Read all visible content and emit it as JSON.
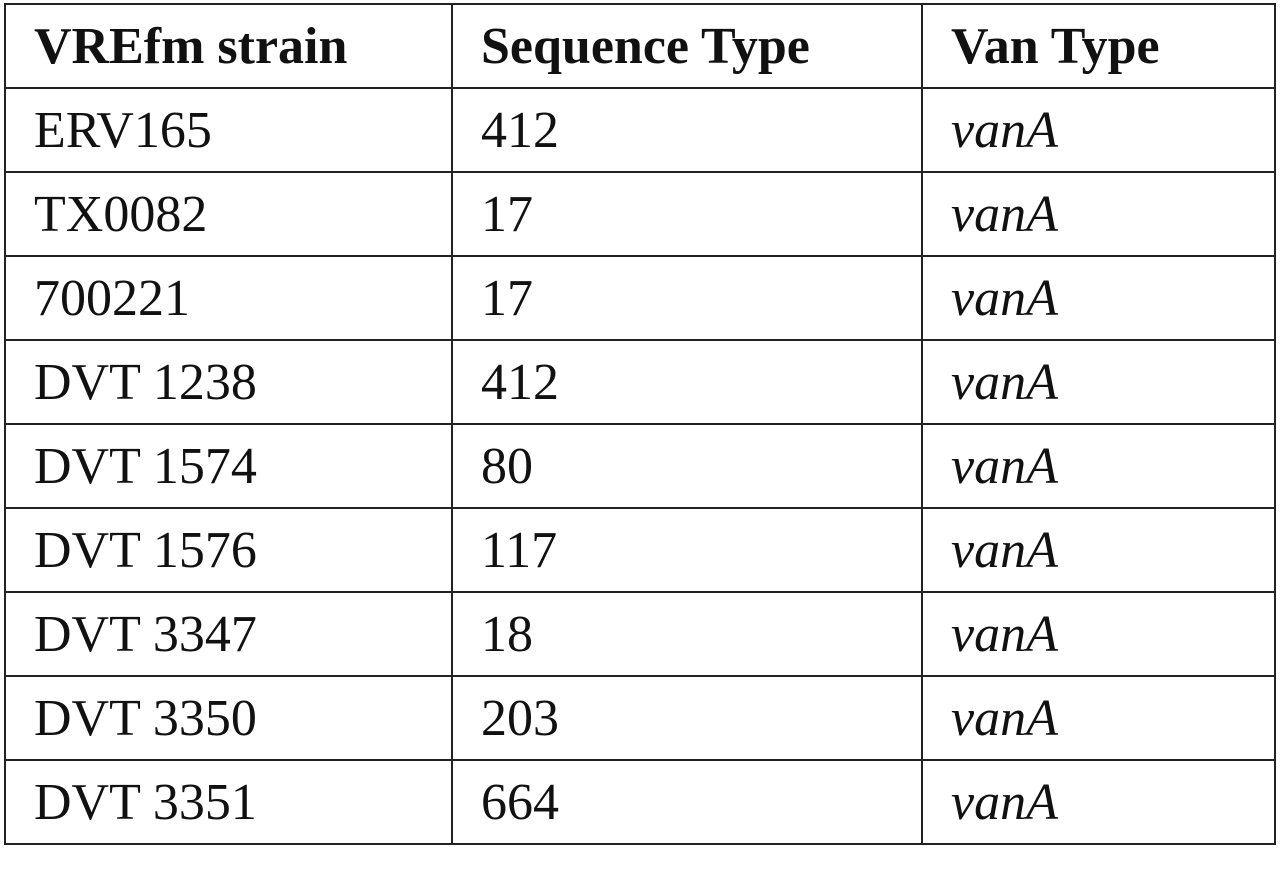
{
  "table": {
    "header": [
      "VREfm strain",
      "Sequence Type",
      "Van Type"
    ],
    "rows": [
      [
        "ERV165",
        412,
        "vanA"
      ],
      [
        "TX0082",
        17,
        "vanA"
      ],
      [
        "700221",
        17,
        "vanA"
      ],
      [
        "DVT 1238",
        412,
        "vanA"
      ],
      [
        "DVT 1574",
        80,
        "vanA"
      ],
      [
        "DVT 1576",
        117,
        "vanA"
      ],
      [
        "DVT 3347",
        18,
        "vanA"
      ],
      [
        "DVT 3350",
        203,
        "vanA"
      ],
      [
        "DVT 3351",
        664,
        "vanA"
      ]
    ]
  }
}
